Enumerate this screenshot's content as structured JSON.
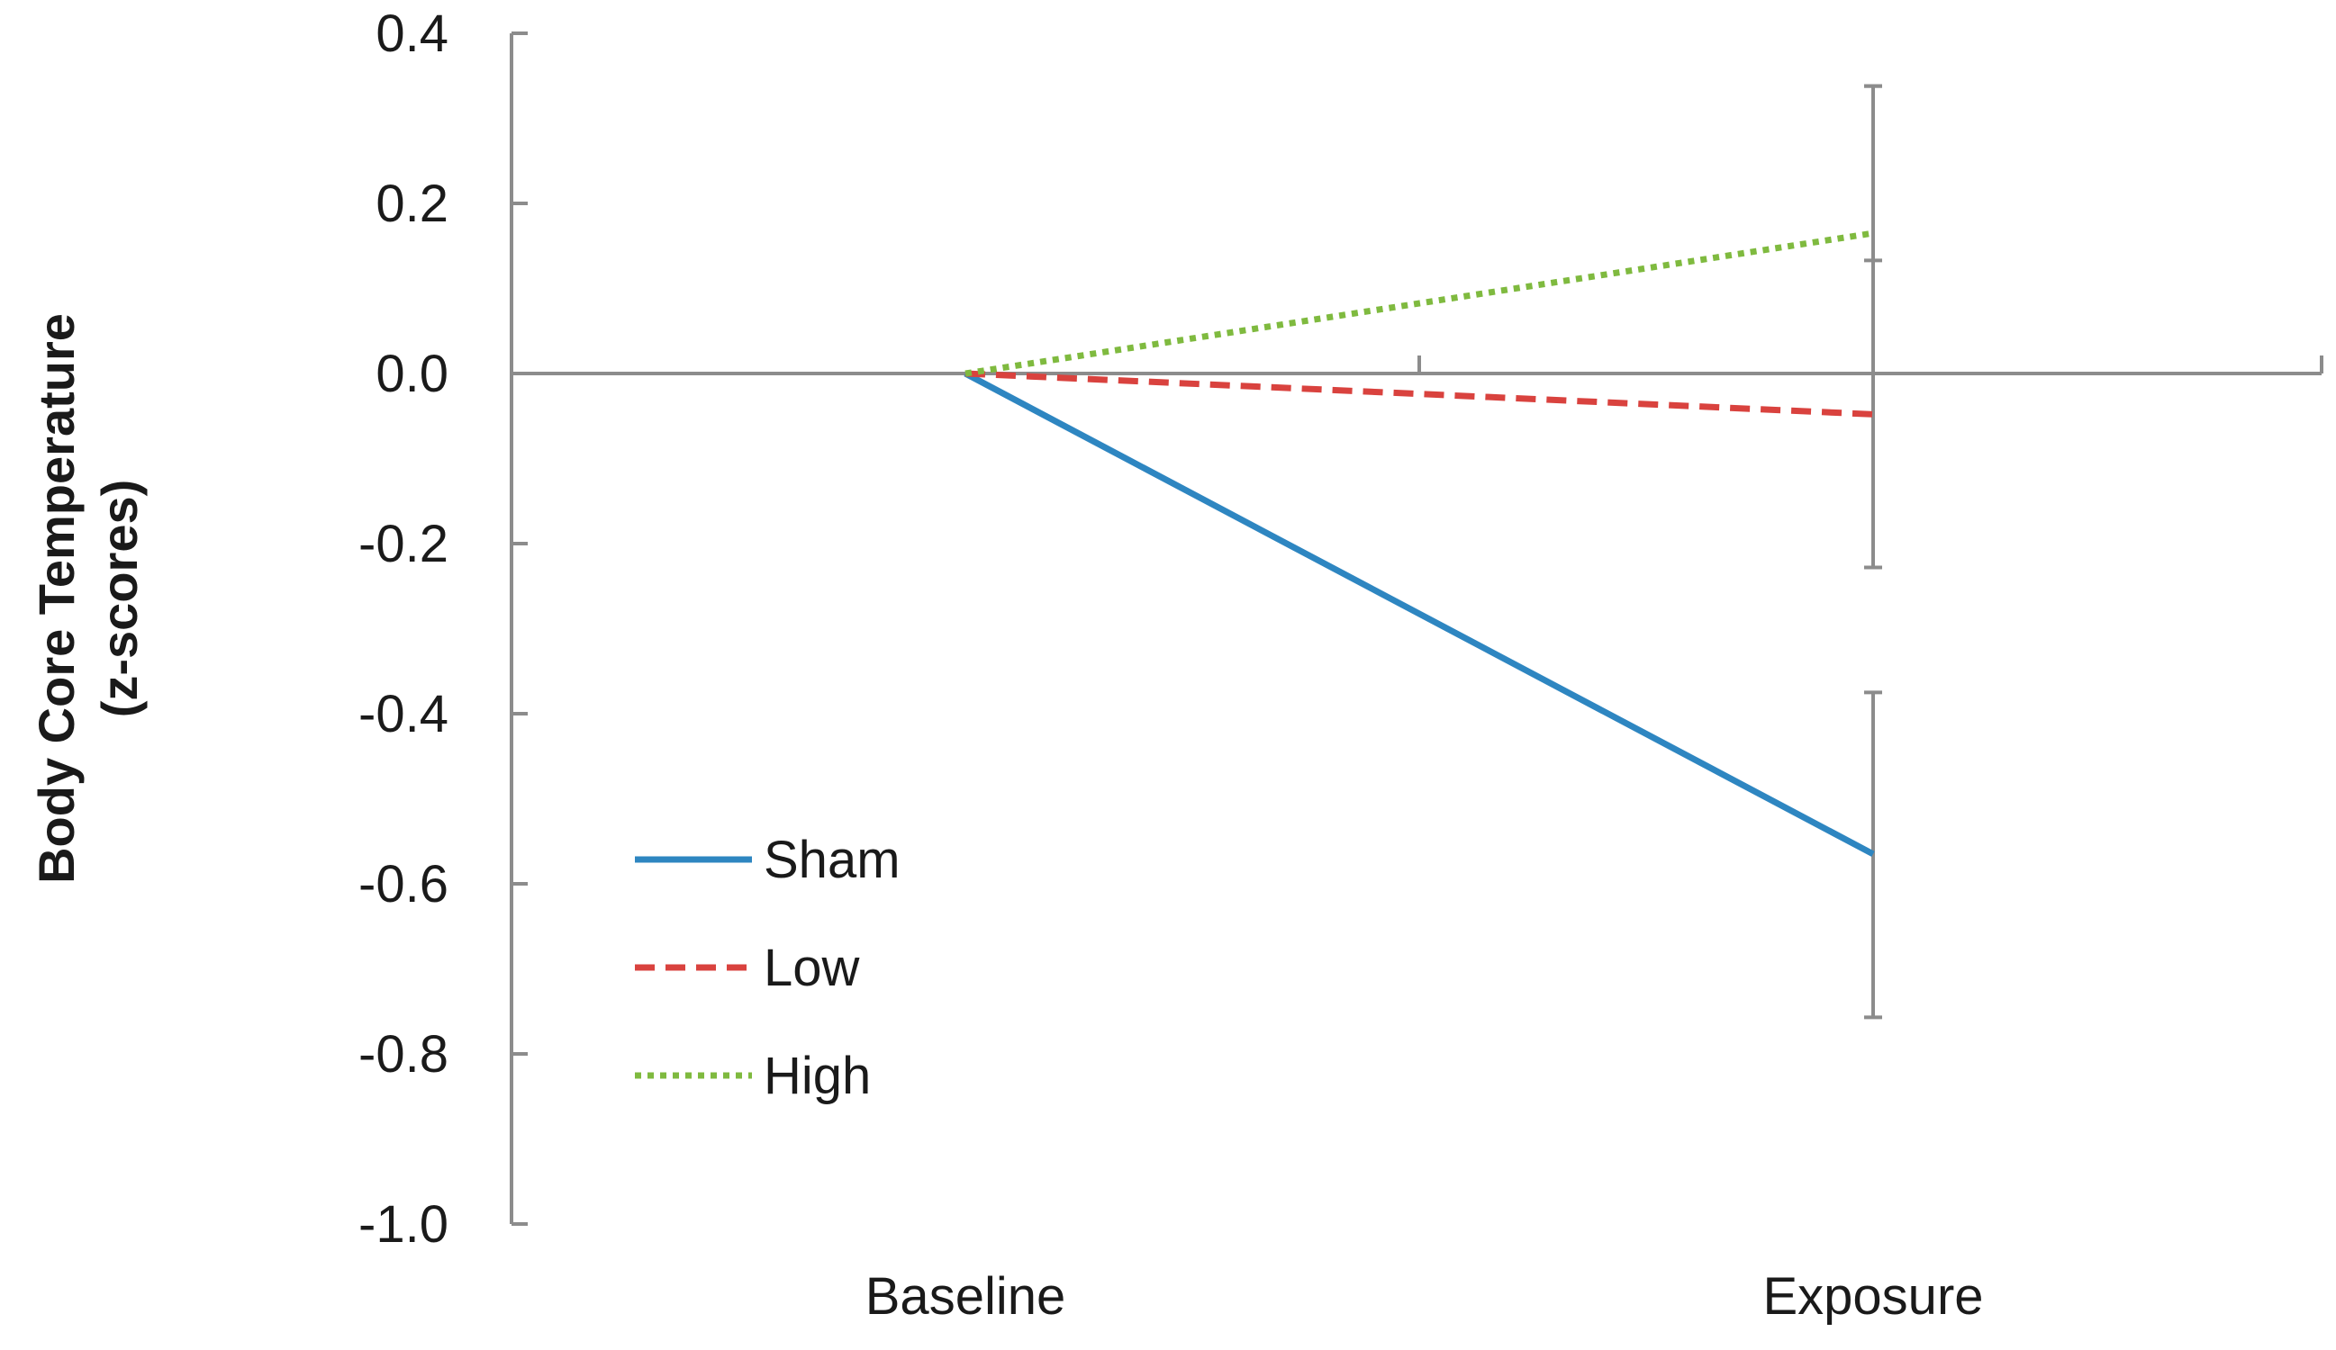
{
  "chart_data": {
    "type": "line",
    "title": "",
    "xlabel": "",
    "ylabel_line1": "Body Core Temperature",
    "ylabel_line2": "(z-scores)",
    "categories": [
      "Baseline",
      "Exposure"
    ],
    "ylim": [
      -1.0,
      0.4
    ],
    "yticks": [
      0.4,
      0.2,
      0.0,
      -0.2,
      -0.4,
      -0.6,
      -0.8,
      -1.0
    ],
    "ytick_labels": [
      "0.4",
      "0.2",
      "0.0",
      "-0.2",
      "-0.4",
      "-0.6",
      "-0.8",
      "-1.0"
    ],
    "grid": false,
    "legend_position": "bottom-left",
    "series": [
      {
        "name": "Sham",
        "values": [
          0.0,
          -0.565
        ],
        "error_upper": [
          null,
          -0.375
        ],
        "error_lower": [
          null,
          -0.757
        ],
        "color": "#2e86c1",
        "style": "solid"
      },
      {
        "name": "Low",
        "values": [
          0.0,
          -0.048
        ],
        "error_upper": [
          null,
          0.338
        ],
        "error_lower": [
          null,
          -0.228
        ],
        "color": "#d9423e",
        "style": "dashed"
      },
      {
        "name": "High",
        "values": [
          0.0,
          0.165
        ],
        "error_upper": [
          null,
          0.338
        ],
        "error_lower": [
          null,
          0.133
        ],
        "color": "#7fba3f",
        "style": "dotted"
      }
    ],
    "colors": {
      "axis": "#8c8c8c",
      "text": "#1a1a1a"
    }
  }
}
